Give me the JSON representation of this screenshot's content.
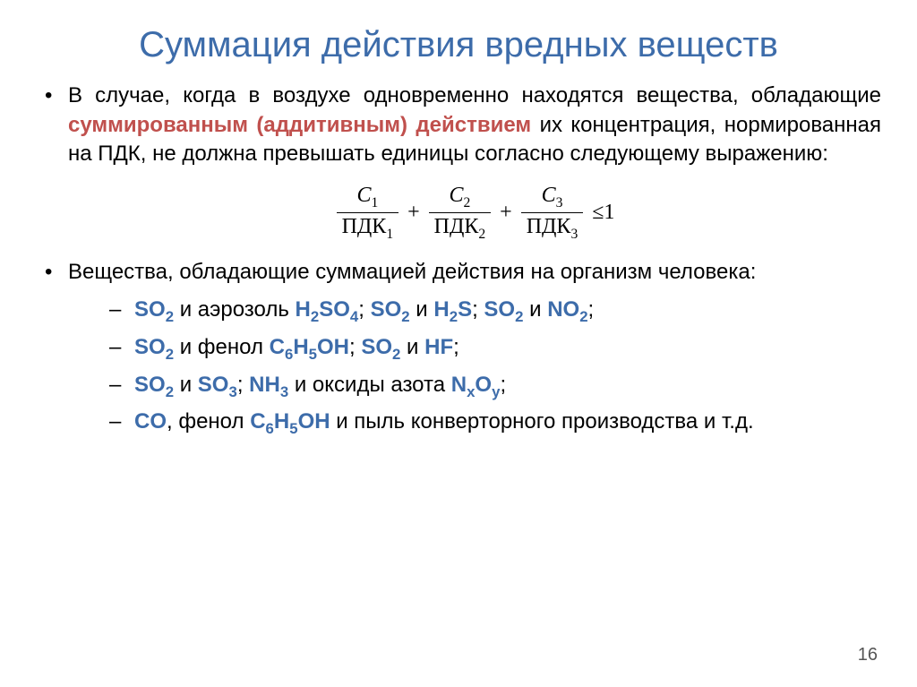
{
  "title": "Суммация действия вредных веществ",
  "para1_before": "В случае, когда в воздухе одновременно находятся вещества, обладающие ",
  "para1_strong": "суммированным (адди­ти­вным) действием",
  "para1_after": " их концентрация, нормированная на ПДК, не должна превышать единицы согласно следующему выражению:",
  "formula": {
    "terms": [
      {
        "num_c": "C",
        "num_i": "1",
        "den_p": "ПДК",
        "den_i": "1"
      },
      {
        "num_c": "C",
        "num_i": "2",
        "den_p": "ПДК",
        "den_i": "2"
      },
      {
        "num_c": "C",
        "num_i": "3",
        "den_p": "ПДК",
        "den_i": "3"
      }
    ],
    "rel": "≤1"
  },
  "para2": "Вещества, обладающие суммацией действия на организм человека:",
  "items": [
    {
      "segs": [
        {
          "t": "chem",
          "el": "SO",
          "sub": "2"
        },
        {
          "t": "txt",
          "v": " и аэрозоль "
        },
        {
          "t": "chem",
          "el": "H",
          "sub": "2"
        },
        {
          "t": "chem",
          "el": "SO",
          "sub": "4"
        },
        {
          "t": "txt",
          "v": "; "
        },
        {
          "t": "chem",
          "el": "SO",
          "sub": "2"
        },
        {
          "t": "txt",
          "v": " и "
        },
        {
          "t": "chem",
          "el": "H",
          "sub": "2"
        },
        {
          "t": "chem",
          "el": "S",
          "sub": ""
        },
        {
          "t": "txt",
          "v": "; "
        },
        {
          "t": "chem",
          "el": "SO",
          "sub": "2"
        },
        {
          "t": "txt",
          "v": " и "
        },
        {
          "t": "chem",
          "el": "NO",
          "sub": "2"
        },
        {
          "t": "txt",
          "v": ";"
        }
      ]
    },
    {
      "segs": [
        {
          "t": "chem",
          "el": "SO",
          "sub": "2"
        },
        {
          "t": "txt",
          "v": " и фенол "
        },
        {
          "t": "chem",
          "el": "C",
          "sub": "6"
        },
        {
          "t": "chem",
          "el": "H",
          "sub": "5"
        },
        {
          "t": "chem",
          "el": "OH",
          "sub": ""
        },
        {
          "t": "txt",
          "v": "; "
        },
        {
          "t": "chem",
          "el": "SO",
          "sub": "2"
        },
        {
          "t": "txt",
          "v": " и "
        },
        {
          "t": "chem",
          "el": "HF",
          "sub": ""
        },
        {
          "t": "txt",
          "v": ";"
        }
      ]
    },
    {
      "segs": [
        {
          "t": "chem",
          "el": "SO",
          "sub": "2"
        },
        {
          "t": "txt",
          "v": " и "
        },
        {
          "t": "chem",
          "el": "SO",
          "sub": "3"
        },
        {
          "t": "txt",
          "v": "; "
        },
        {
          "t": "chem",
          "el": "NH",
          "sub": "3"
        },
        {
          "t": "txt",
          "v": " и оксиды азота "
        },
        {
          "t": "chem",
          "el": "N",
          "sub": "x"
        },
        {
          "t": "chem",
          "el": "O",
          "sub": "y"
        },
        {
          "t": "txt",
          "v": ";"
        }
      ]
    },
    {
      "segs": [
        {
          "t": "chem",
          "el": "CO",
          "sub": ""
        },
        {
          "t": "txt",
          "v": ", фенол "
        },
        {
          "t": "chem",
          "el": "C",
          "sub": "6"
        },
        {
          "t": "chem",
          "el": "H",
          "sub": "5"
        },
        {
          "t": "chem",
          "el": "OH",
          "sub": ""
        },
        {
          "t": "txt",
          "v": " и пыль конверторного производства и т.д."
        }
      ]
    }
  ],
  "page_number": "16",
  "colors": {
    "title": "#3d6caa",
    "emph": "#c0504d",
    "chem": "#3d6caa",
    "text": "#000000",
    "background": "#ffffff"
  }
}
